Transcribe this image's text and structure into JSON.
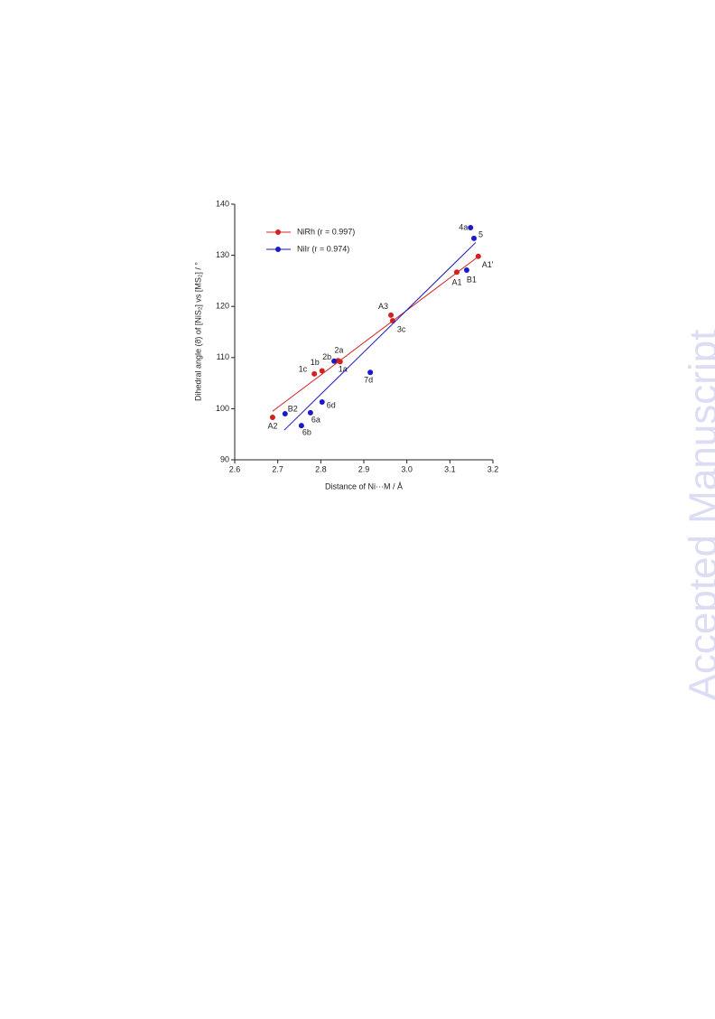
{
  "chart_data": {
    "type": "scatter",
    "x_label": "Distance of Ni···M / Å",
    "y_label": "Dihedral angle (ϑ) of [NiS₂] vs [MS₂] / °",
    "xlim": [
      2.6,
      3.2
    ],
    "ylim": [
      90,
      140
    ],
    "xticks": [
      2.6,
      2.7,
      2.8,
      2.9,
      {
        "value": 3,
        "label": "3.0"
      },
      3.1,
      3.2
    ],
    "yticks": [
      90,
      100,
      110,
      120,
      130,
      140
    ],
    "series": [
      {
        "name": "NiRh (r = 0.997)",
        "color": "#d42020",
        "labels": [
          "A2",
          "1c",
          "1b",
          "2a",
          "1a",
          "A3",
          "3c",
          "A1",
          "A1'"
        ],
        "x": [
          2.688,
          2.785,
          2.803,
          2.84,
          2.845,
          2.963,
          2.967,
          3.116,
          3.166
        ],
        "values": [
          98.3,
          106.8,
          107.4,
          109.4,
          109.2,
          118.3,
          117.2,
          126.7,
          129.8
        ],
        "fit_x": [
          2.688,
          3.17
        ],
        "fit_y": [
          99.5,
          130.0
        ]
      },
      {
        "name": "NiIr (r = 0.974)",
        "color": "#1a1ac8",
        "labels": [
          "B2",
          "6b",
          "6a",
          "6d",
          "2b",
          "7d",
          "B1",
          "4a",
          "5"
        ],
        "x": [
          2.717,
          2.755,
          2.776,
          2.803,
          2.831,
          2.915,
          3.139,
          3.148,
          3.156
        ],
        "values": [
          99.0,
          96.7,
          99.2,
          101.3,
          109.3,
          107.1,
          127.1,
          135.4,
          133.3
        ],
        "fit_x": [
          2.715,
          3.16
        ],
        "fit_y": [
          95.8,
          132.5
        ]
      }
    ]
  },
  "watermark": "Accepted Manuscript"
}
